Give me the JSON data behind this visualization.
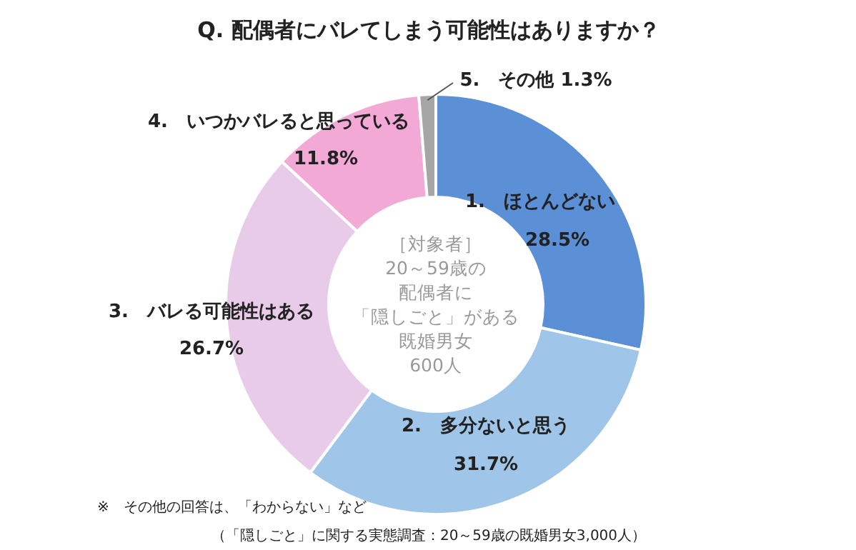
{
  "chart_data": {
    "type": "donut",
    "title": "Q. 配偶者にバレてしまう可能性はありますか？",
    "categories": [
      "1.　ほとんどない",
      "2.　多分ないと思う",
      "3.　バレる可能性はある",
      "4.　いつかバレると思っている",
      "5.　その他"
    ],
    "values": [
      28.5,
      31.7,
      26.7,
      11.8,
      1.3
    ],
    "value_labels": [
      "28.5%",
      "31.7%",
      "26.7%",
      "11.8%",
      "1.3%"
    ],
    "colors": [
      "#5b8fd6",
      "#9fc5e8",
      "#e8cbe8",
      "#f2a9d6",
      "#a6a6a6"
    ],
    "annotations": [
      "［対象者］",
      "20～59歳の",
      "配偶者に",
      "「隠しごと」がある",
      "既婚男女",
      "600人",
      "※　その他の回答は、「わからない」など",
      "（「隠しごと」に関する実態調査：20～59歳の既婚男女3,000人）"
    ]
  }
}
